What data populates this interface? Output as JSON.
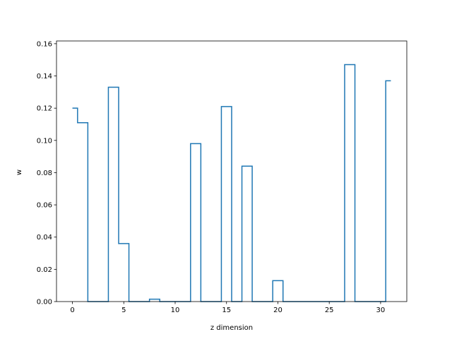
{
  "chart_data": {
    "type": "line",
    "drawstyle": "steps-mid",
    "xlabel": "z dimension",
    "ylabel": "w",
    "xlim": [
      -1.55,
      32.55
    ],
    "ylim": [
      0,
      0.1617
    ],
    "xticks": [
      0,
      5,
      10,
      15,
      20,
      25,
      30
    ],
    "xtick_labels": [
      "0",
      "5",
      "10",
      "15",
      "20",
      "25",
      "30"
    ],
    "yticks": [
      0,
      0.02,
      0.04,
      0.06,
      0.08,
      0.1,
      0.12,
      0.14,
      0.16
    ],
    "ytick_labels": [
      "0.00",
      "0.02",
      "0.04",
      "0.06",
      "0.08",
      "0.10",
      "0.12",
      "0.14",
      "0.16"
    ],
    "grid": false,
    "legend": "none",
    "line_color": "#1f77b4",
    "series": [
      {
        "x": [
          0,
          1,
          2,
          3,
          4,
          5,
          6,
          7,
          8,
          9,
          10,
          11,
          12,
          13,
          14,
          15,
          16,
          17,
          18,
          19,
          20,
          21,
          22,
          23,
          24,
          25,
          26,
          27,
          28,
          29,
          30,
          31
        ],
        "values": [
          0.12,
          0.111,
          0.0,
          0.0,
          0.133,
          0.036,
          0.0,
          0.0,
          0.0015,
          0.0,
          0.0,
          0.0,
          0.098,
          0.0,
          0.0,
          0.121,
          0.0,
          0.084,
          0.0,
          0.0,
          0.013,
          0.0,
          0.0,
          0.0,
          0.0,
          0.0,
          0.0,
          0.147,
          0.0,
          0.0,
          0.0,
          0.137
        ]
      }
    ]
  }
}
